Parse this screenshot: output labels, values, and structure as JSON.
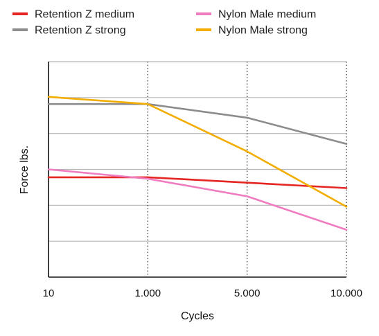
{
  "chart_data": {
    "type": "line",
    "xlabel": "Cycles",
    "ylabel": "Force lbs.",
    "x": [
      "10",
      "1.000",
      "5.000",
      "10.000"
    ],
    "ylim": [
      0,
      6
    ],
    "grid": "horizontal solid, vertical dotted",
    "legend": "top",
    "series": [
      {
        "name": "Retention Z medium",
        "color": "#e52521",
        "values": [
          2.78,
          2.78,
          2.63,
          2.48
        ]
      },
      {
        "name": "Retention Z strong",
        "color": "#8c8c8c",
        "values": [
          4.82,
          4.82,
          4.44,
          3.71
        ]
      },
      {
        "name": "Nylon Male medium",
        "color": "#f07cc0",
        "values": [
          3.0,
          2.74,
          2.25,
          1.32
        ]
      },
      {
        "name": "Nylon Male strong",
        "color": "#f2ad00",
        "values": [
          5.02,
          4.82,
          3.5,
          1.96
        ]
      }
    ]
  }
}
